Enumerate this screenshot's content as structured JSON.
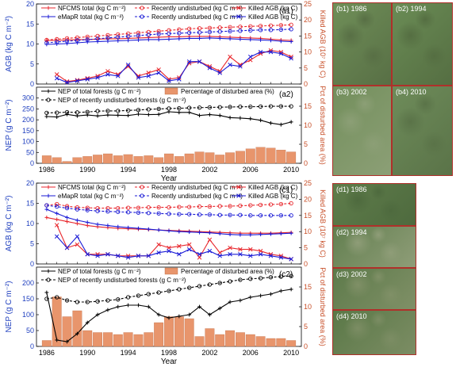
{
  "chart_data": [
    {
      "id": "a1",
      "type": "line",
      "panel_label": "(a1)",
      "x": [
        1986,
        1987,
        1988,
        1989,
        1990,
        1991,
        1992,
        1993,
        1994,
        1995,
        1996,
        1997,
        1998,
        1999,
        2000,
        2001,
        2002,
        2003,
        2004,
        2005,
        2006,
        2007,
        2008,
        2009,
        2010
      ],
      "ylabel": "AGB (kg C m⁻²)",
      "ylabel_right": "Killed AGB (10⁷ kg C)",
      "ylim": [
        0,
        20
      ],
      "yticks": [
        "0",
        "5",
        "10",
        "15",
        "20"
      ],
      "ylim_right": [
        0,
        25
      ],
      "yticks_right": [
        "0",
        "5",
        "10",
        "15",
        "20",
        "25"
      ],
      "legend": [
        "NFCMS total (kg C m⁻²)",
        "Recently undisturbed (kg C m⁻²)",
        "Killed AGB (kg C)",
        "eMapR total (kg C m⁻²)",
        "Recently undisturbed (kg C m⁻²)",
        "Killed AGB (kg C)"
      ],
      "series": [
        {
          "axis": "left",
          "color": "#e8262c",
          "style": "solid",
          "marker": "plus",
          "values": [
            10.9,
            10.9,
            11.0,
            11.1,
            11.1,
            11.2,
            11.3,
            11.3,
            11.4,
            11.5,
            11.6,
            11.7,
            11.8,
            11.8,
            11.9,
            11.9,
            11.9,
            11.8,
            11.7,
            11.6,
            11.5,
            11.4,
            11.2,
            11.0,
            10.9
          ]
        },
        {
          "axis": "left",
          "color": "#e8262c",
          "style": "dashed",
          "marker": "circle",
          "values": [
            11.0,
            11.2,
            11.4,
            11.6,
            11.8,
            12.0,
            12.2,
            12.4,
            12.6,
            12.8,
            13.0,
            13.2,
            13.4,
            13.6,
            13.8,
            13.9,
            14.0,
            14.1,
            14.2,
            14.3,
            14.4,
            14.5,
            14.6,
            14.7,
            14.8
          ]
        },
        {
          "axis": "right",
          "color": "#e8262c",
          "style": "solid",
          "marker": "x",
          "values": [
            null,
            3.0,
            0.8,
            1.2,
            1.8,
            2.5,
            4.0,
            3.0,
            5.5,
            2.5,
            3.5,
            4.5,
            1.5,
            2.0,
            6.5,
            7.0,
            5.5,
            4.0,
            8.5,
            6.0,
            7.5,
            9.5,
            10.5,
            10.0,
            8.5
          ]
        },
        {
          "axis": "left",
          "color": "#1a1ad6",
          "style": "solid",
          "marker": "plus",
          "values": [
            9.9,
            10.0,
            10.1,
            10.3,
            10.5,
            10.6,
            10.7,
            10.8,
            10.9,
            11.0,
            11.1,
            11.1,
            11.2,
            11.3,
            11.4,
            11.4,
            11.5,
            11.4,
            11.3,
            11.2,
            11.1,
            11.0,
            10.9,
            10.7,
            10.6
          ]
        },
        {
          "axis": "left",
          "color": "#1a1ad6",
          "style": "dashed",
          "marker": "circle",
          "values": [
            10.3,
            10.5,
            10.7,
            10.9,
            11.1,
            11.3,
            11.5,
            11.7,
            11.9,
            12.1,
            12.3,
            12.5,
            12.6,
            12.7,
            12.8,
            12.9,
            13.0,
            13.1,
            13.2,
            13.3,
            13.4,
            13.5,
            13.5,
            13.6,
            13.7
          ]
        },
        {
          "axis": "right",
          "color": "#1a1ad6",
          "style": "solid",
          "marker": "x",
          "values": [
            null,
            1.8,
            0.5,
            1.0,
            1.5,
            2.0,
            3.0,
            2.5,
            6.0,
            2.0,
            2.5,
            3.5,
            1.0,
            1.5,
            7.0,
            7.0,
            5.0,
            3.5,
            6.0,
            5.5,
            8.5,
            10.0,
            10.0,
            9.5,
            8.0
          ]
        }
      ]
    },
    {
      "id": "a2",
      "type": "bar+line",
      "panel_label": "(a2)",
      "x": [
        1986,
        1987,
        1988,
        1989,
        1990,
        1991,
        1992,
        1993,
        1994,
        1995,
        1996,
        1997,
        1998,
        1999,
        2000,
        2001,
        2002,
        2003,
        2004,
        2005,
        2006,
        2007,
        2008,
        2009,
        2010
      ],
      "xlabel": "Year",
      "xticks": [
        "1986",
        "1990",
        "1994",
        "1998",
        "2002",
        "2006",
        "2010"
      ],
      "ylabel": "NEP (g C m⁻²)",
      "ylabel_right": "Pct of disturbed area (%)",
      "ylim": [
        0,
        350
      ],
      "yticks": [
        "0",
        "50",
        "100",
        "150",
        "200",
        "250",
        "300"
      ],
      "ylim_right": [
        0,
        20
      ],
      "yticks_right": [
        "0",
        "5",
        "10",
        "15"
      ],
      "legend": [
        "NEP of total forests (g C m⁻²)",
        "NEP of recently undisturbed forests (g C m⁻²)",
        "Percentage of disturbed area (%)"
      ],
      "bars": {
        "axis": "right",
        "color": "#e8956c",
        "name": "Percentage of disturbed area (%)",
        "values": [
          2.0,
          1.5,
          0.5,
          1.5,
          1.8,
          2.2,
          2.5,
          2.0,
          2.3,
          1.8,
          2.0,
          1.5,
          2.5,
          1.8,
          2.5,
          3.0,
          2.8,
          2.2,
          2.8,
          3.2,
          3.8,
          4.2,
          4.0,
          3.5,
          3.0
        ]
      },
      "series": [
        {
          "axis": "left",
          "color": "#000000",
          "style": "solid",
          "marker": "plus",
          "values": [
            215,
            213,
            225,
            218,
            222,
            218,
            222,
            221,
            220,
            226,
            224,
            225,
            237,
            234,
            234,
            220,
            224,
            220,
            210,
            208,
            205,
            198,
            185,
            178,
            190
          ]
        },
        {
          "axis": "left",
          "color": "#000000",
          "style": "dashed",
          "marker": "circle",
          "values": [
            232,
            233,
            235,
            234,
            236,
            240,
            241,
            241,
            243,
            245,
            248,
            250,
            252,
            253,
            255,
            256,
            257,
            258,
            259,
            260,
            260,
            261,
            262,
            262,
            262
          ]
        }
      ]
    },
    {
      "id": "c1",
      "type": "line",
      "panel_label": "(c1)",
      "x": [
        1986,
        1987,
        1988,
        1989,
        1990,
        1991,
        1992,
        1993,
        1994,
        1995,
        1996,
        1997,
        1998,
        1999,
        2000,
        2001,
        2002,
        2003,
        2004,
        2005,
        2006,
        2007,
        2008,
        2009,
        2010
      ],
      "ylabel": "AGB (kg C m⁻²)",
      "ylabel_right": "Killed AGB (10⁷ kg C)",
      "ylim": [
        0,
        20
      ],
      "yticks": [
        "0",
        "5",
        "10",
        "15",
        "20"
      ],
      "ylim_right": [
        0,
        25
      ],
      "yticks_right": [
        "0",
        "5",
        "10",
        "15",
        "20",
        "25"
      ],
      "legend": [
        "NFCMS total (kg C m⁻²)",
        "Recently undisturbed (kg C m⁻²)",
        "Killed AGB (kg C)",
        "eMapR total (kg C m⁻²)",
        "Recently undisturbed (kg C m⁻²)",
        "Killed AGB (kg C)"
      ],
      "series": [
        {
          "axis": "left",
          "color": "#e8262c",
          "style": "solid",
          "marker": "plus",
          "values": [
            11.5,
            11.0,
            10.5,
            10.0,
            9.5,
            9.2,
            9.0,
            8.8,
            8.7,
            8.6,
            8.5,
            8.4,
            8.3,
            8.2,
            8.1,
            8.0,
            7.9,
            7.8,
            7.7,
            7.6,
            7.6,
            7.6,
            7.6,
            7.7,
            7.8
          ]
        },
        {
          "axis": "left",
          "color": "#e8262c",
          "style": "dashed",
          "marker": "circle",
          "values": [
            14.5,
            14.8,
            14.3,
            14.0,
            13.9,
            13.8,
            13.8,
            13.8,
            13.9,
            13.9,
            14.0,
            14.0,
            14.0,
            14.1,
            14.1,
            14.2,
            14.2,
            14.3,
            14.3,
            14.4,
            14.5,
            14.6,
            14.7,
            14.8,
            15.0
          ]
        },
        {
          "axis": "right",
          "color": "#e8262c",
          "style": "solid",
          "marker": "x",
          "values": [
            null,
            12.0,
            5.0,
            6.0,
            3.0,
            3.0,
            3.0,
            2.5,
            2.5,
            2.5,
            2.5,
            6.0,
            5.0,
            5.5,
            6.0,
            2.0,
            7.5,
            3.5,
            5.0,
            4.5,
            4.5,
            4.0,
            3.0,
            2.5,
            1.5
          ]
        },
        {
          "axis": "left",
          "color": "#1a1ad6",
          "style": "solid",
          "marker": "plus",
          "values": [
            13.5,
            12.5,
            11.5,
            10.8,
            10.3,
            9.8,
            9.5,
            9.2,
            9.0,
            8.8,
            8.6,
            8.4,
            8.2,
            8.0,
            7.9,
            7.8,
            7.7,
            7.5,
            7.3,
            7.2,
            7.2,
            7.3,
            7.4,
            7.5,
            7.6
          ]
        },
        {
          "axis": "left",
          "color": "#1a1ad6",
          "style": "dashed",
          "marker": "circle",
          "values": [
            14.5,
            14.2,
            13.8,
            13.5,
            13.3,
            13.1,
            13.0,
            12.9,
            12.8,
            12.7,
            12.6,
            12.5,
            12.4,
            12.3,
            12.3,
            12.2,
            12.2,
            12.1,
            12.1,
            12.1,
            12.0,
            12.0,
            12.0,
            12.0,
            12.0
          ]
        },
        {
          "axis": "right",
          "color": "#1a1ad6",
          "style": "solid",
          "marker": "x",
          "values": [
            null,
            8.5,
            5.0,
            8.5,
            3.0,
            2.5,
            3.0,
            2.5,
            2.0,
            2.5,
            2.5,
            3.5,
            4.0,
            3.0,
            4.5,
            3.0,
            4.0,
            2.5,
            3.0,
            3.0,
            2.5,
            3.0,
            2.5,
            2.0,
            1.5
          ]
        }
      ]
    },
    {
      "id": "c2",
      "type": "bar+line",
      "panel_label": "(c2)",
      "x": [
        1986,
        1987,
        1988,
        1989,
        1990,
        1991,
        1992,
        1993,
        1994,
        1995,
        1996,
        1997,
        1998,
        1999,
        2000,
        2001,
        2002,
        2003,
        2004,
        2005,
        2006,
        2007,
        2008,
        2009,
        2010
      ],
      "xlabel": "Year",
      "xticks": [
        "1986",
        "1990",
        "1994",
        "1998",
        "2002",
        "2006",
        "2010"
      ],
      "ylabel": "NEP (g C m⁻²)",
      "ylabel_right": "Pct of disturbed area (%)",
      "ylim": [
        0,
        250
      ],
      "yticks": [
        "0",
        "50",
        "100",
        "150",
        "200"
      ],
      "ylim_right": [
        0,
        20
      ],
      "yticks_right": [
        "0",
        "5",
        "10",
        "15"
      ],
      "legend": [
        "NEP of total forests (g C m⁻²)",
        "NEP of recently undisturbed forests (g C m⁻²)",
        "Percentage of disturbed area (%)"
      ],
      "bars": {
        "axis": "right",
        "color": "#e8956c",
        "name": "Percentage of disturbed area (%)",
        "values": [
          1.5,
          12.5,
          7.5,
          9.0,
          4.0,
          3.5,
          3.5,
          3.0,
          3.5,
          3.0,
          3.5,
          6.0,
          7.5,
          7.5,
          7.0,
          2.5,
          4.5,
          3.0,
          4.0,
          3.5,
          3.0,
          2.5,
          2.0,
          2.0,
          1.5
        ]
      },
      "series": [
        {
          "axis": "left",
          "color": "#000000",
          "style": "solid",
          "marker": "plus",
          "values": [
            170,
            20,
            15,
            40,
            75,
            100,
            115,
            125,
            130,
            130,
            125,
            100,
            90,
            95,
            100,
            125,
            100,
            120,
            140,
            145,
            155,
            160,
            165,
            175,
            180
          ]
        },
        {
          "axis": "left",
          "color": "#000000",
          "style": "dashed",
          "marker": "circle",
          "values": [
            150,
            155,
            145,
            140,
            140,
            142,
            145,
            148,
            155,
            160,
            165,
            170,
            175,
            180,
            185,
            190,
            195,
            200,
            205,
            210,
            213,
            215,
            218,
            220,
            222
          ]
        }
      ]
    }
  ],
  "tiles": [
    {
      "label": "(b1) 1986",
      "color": "#6f8f58",
      "accent": "#586f45"
    },
    {
      "label": "(b2) 1994",
      "color": "#6a8c55",
      "accent": "#556e42"
    },
    {
      "label": "(b3) 2002",
      "color": "#738f5c",
      "accent": "#8c9f76"
    },
    {
      "label": "(b4) 2010",
      "color": "#6e8c5a",
      "accent": "#5a7348"
    },
    {
      "label": "(d1) 1986",
      "color": "#5f7d4b",
      "accent": "#4e6a3e"
    },
    {
      "label": "(d2) 1994",
      "color": "#627f4f",
      "accent": "#8f9d78"
    },
    {
      "label": "(d3) 2002",
      "color": "#5d7a4a",
      "accent": "#809067"
    },
    {
      "label": "(d4) 2010",
      "color": "#5a7847",
      "accent": "#7c8d64"
    }
  ]
}
